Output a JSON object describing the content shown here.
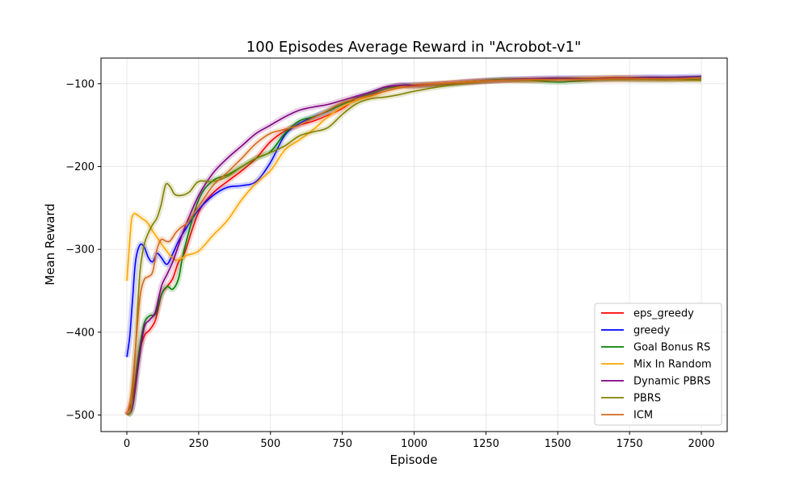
{
  "chart_data": {
    "type": "line",
    "title": "100 Episodes Average Reward in \"Acrobot-v1\"",
    "xlabel": "Episode",
    "ylabel": "Mean Reward",
    "xlim": [
      -90,
      2090
    ],
    "ylim": [
      -520,
      -69
    ],
    "xticks": [
      0,
      250,
      500,
      750,
      1000,
      1250,
      1500,
      1750,
      2000
    ],
    "yticks": [
      -500,
      -400,
      -300,
      -200,
      -100
    ],
    "ytick_labels": [
      "−500",
      "−400",
      "−300",
      "−200",
      "−100"
    ],
    "grid": true,
    "legend_position": "lower-right",
    "series": [
      {
        "name": "eps_greedy",
        "color": "#ff0000",
        "x": [
          0,
          20,
          40,
          60,
          80,
          100,
          120,
          140,
          160,
          180,
          200,
          250,
          300,
          350,
          400,
          450,
          500,
          550,
          600,
          650,
          700,
          750,
          800,
          850,
          900,
          950,
          1000,
          1100,
          1200,
          1300,
          1400,
          1500,
          1600,
          1700,
          1800,
          1900,
          2000
        ],
        "y": [
          -498,
          -480,
          -430,
          -405,
          -397,
          -385,
          -355,
          -345,
          -335,
          -315,
          -305,
          -255,
          -232,
          -218,
          -205,
          -190,
          -170,
          -157,
          -150,
          -145,
          -138,
          -130,
          -118,
          -113,
          -106,
          -102,
          -103,
          -100,
          -97,
          -96,
          -96,
          -95,
          -95,
          -95,
          -95,
          -95,
          -94
        ]
      },
      {
        "name": "greedy",
        "color": "#0000ff",
        "x": [
          0,
          10,
          20,
          30,
          45,
          60,
          75,
          90,
          105,
          120,
          140,
          160,
          180,
          200,
          250,
          300,
          350,
          400,
          450,
          500,
          550,
          600,
          650,
          700,
          750,
          800,
          850,
          900,
          950,
          1000,
          1100,
          1200,
          1300,
          1400,
          1500,
          1600,
          1700,
          1800,
          1900,
          2000
        ],
        "y": [
          -430,
          -405,
          -360,
          -315,
          -295,
          -297,
          -310,
          -315,
          -305,
          -310,
          -318,
          -305,
          -290,
          -278,
          -252,
          -235,
          -225,
          -223,
          -218,
          -195,
          -162,
          -148,
          -140,
          -133,
          -125,
          -117,
          -112,
          -106,
          -102,
          -101,
          -100,
          -97,
          -95,
          -94,
          -93,
          -93,
          -93,
          -92,
          -92,
          -91
        ]
      },
      {
        "name": "Goal Bonus RS",
        "color": "#008000",
        "x": [
          0,
          20,
          40,
          60,
          80,
          100,
          120,
          140,
          160,
          180,
          200,
          250,
          300,
          350,
          400,
          450,
          500,
          550,
          600,
          650,
          700,
          750,
          800,
          850,
          900,
          950,
          1000,
          1100,
          1200,
          1300,
          1400,
          1500,
          1600,
          1700,
          1800,
          1900,
          2000
        ],
        "y": [
          -500,
          -490,
          -430,
          -390,
          -380,
          -378,
          -355,
          -345,
          -348,
          -335,
          -300,
          -240,
          -217,
          -210,
          -200,
          -190,
          -182,
          -160,
          -145,
          -140,
          -133,
          -125,
          -118,
          -112,
          -106,
          -103,
          -102,
          -101,
          -98,
          -95,
          -96,
          -98,
          -96,
          -94,
          -95,
          -95,
          -94
        ]
      },
      {
        "name": "Mix In Random",
        "color": "#ffa500",
        "x": [
          0,
          8,
          16,
          25,
          35,
          50,
          70,
          90,
          110,
          130,
          150,
          170,
          190,
          210,
          250,
          300,
          350,
          400,
          450,
          500,
          550,
          600,
          650,
          700,
          750,
          800,
          850,
          900,
          950,
          1000,
          1100,
          1200,
          1300,
          1400,
          1500,
          1600,
          1700,
          1800,
          1900,
          2000
        ],
        "y": [
          -338,
          -300,
          -265,
          -257,
          -258,
          -262,
          -267,
          -278,
          -288,
          -298,
          -307,
          -313,
          -311,
          -307,
          -302,
          -283,
          -265,
          -240,
          -220,
          -205,
          -180,
          -168,
          -155,
          -140,
          -128,
          -120,
          -115,
          -109,
          -104,
          -101,
          -99,
          -97,
          -96,
          -95,
          -94,
          -93,
          -92,
          -93,
          -94,
          -93
        ]
      },
      {
        "name": "Dynamic PBRS",
        "color": "#800080",
        "x": [
          0,
          20,
          40,
          60,
          80,
          100,
          120,
          140,
          160,
          180,
          200,
          250,
          300,
          350,
          400,
          450,
          500,
          550,
          600,
          650,
          700,
          750,
          800,
          850,
          900,
          950,
          1000,
          1100,
          1200,
          1300,
          1400,
          1500,
          1600,
          1700,
          1800,
          1900,
          2000
        ],
        "y": [
          -500,
          -490,
          -440,
          -395,
          -385,
          -375,
          -345,
          -330,
          -315,
          -295,
          -275,
          -235,
          -208,
          -190,
          -175,
          -160,
          -150,
          -140,
          -132,
          -128,
          -125,
          -120,
          -115,
          -110,
          -104,
          -102,
          -102,
          -100,
          -98,
          -96,
          -94,
          -94,
          -94,
          -93,
          -93,
          -93,
          -93
        ]
      },
      {
        "name": "PBRS",
        "color": "#808000",
        "x": [
          0,
          15,
          30,
          45,
          60,
          75,
          90,
          105,
          120,
          135,
          150,
          165,
          180,
          200,
          220,
          250,
          300,
          350,
          400,
          450,
          500,
          550,
          600,
          650,
          700,
          750,
          800,
          850,
          900,
          950,
          1000,
          1100,
          1200,
          1300,
          1400,
          1500,
          1600,
          1700,
          1800,
          1900,
          2000
        ],
        "y": [
          -500,
          -490,
          -420,
          -330,
          -295,
          -280,
          -270,
          -262,
          -245,
          -222,
          -224,
          -233,
          -235,
          -234,
          -230,
          -218,
          -218,
          -212,
          -200,
          -190,
          -183,
          -175,
          -163,
          -158,
          -153,
          -137,
          -124,
          -118,
          -116,
          -113,
          -109,
          -103,
          -99,
          -96,
          -96,
          -95,
          -95,
          -95,
          -95,
          -95,
          -96
        ]
      },
      {
        "name": "ICM",
        "color": "#d2691e",
        "x": [
          0,
          15,
          30,
          45,
          60,
          75,
          90,
          105,
          120,
          135,
          150,
          170,
          190,
          210,
          250,
          300,
          350,
          400,
          450,
          500,
          550,
          600,
          650,
          700,
          750,
          800,
          850,
          900,
          950,
          1000,
          1100,
          1200,
          1300,
          1400,
          1500,
          1600,
          1700,
          1800,
          1900,
          2000
        ],
        "y": [
          -500,
          -475,
          -420,
          -360,
          -337,
          -333,
          -327,
          -300,
          -288,
          -290,
          -290,
          -280,
          -273,
          -268,
          -248,
          -223,
          -207,
          -190,
          -172,
          -160,
          -155,
          -150,
          -141,
          -132,
          -123,
          -118,
          -114,
          -109,
          -105,
          -103,
          -100,
          -98,
          -96,
          -95,
          -95,
          -95,
          -94,
          -94,
          -94,
          -93
        ]
      }
    ]
  }
}
